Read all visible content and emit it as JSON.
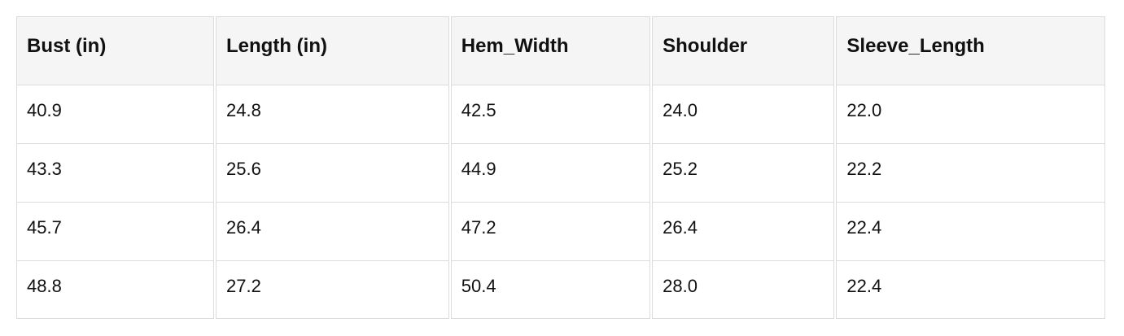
{
  "table": {
    "headers": [
      "Bust (in)",
      "Length (in)",
      "Hem_Width",
      "Shoulder",
      "Sleeve_Length"
    ],
    "rows": [
      [
        "40.9",
        "24.8",
        "42.5",
        "24.0",
        "22.0"
      ],
      [
        "43.3",
        "25.6",
        "44.9",
        "25.2",
        "22.2"
      ],
      [
        "45.7",
        "26.4",
        "47.2",
        "26.4",
        "22.4"
      ],
      [
        "48.8",
        "27.2",
        "50.4",
        "28.0",
        "22.4"
      ]
    ]
  }
}
